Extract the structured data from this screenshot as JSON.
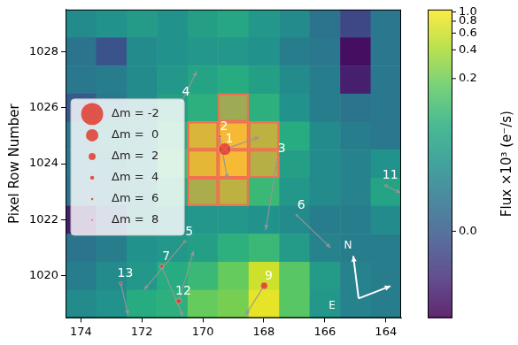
{
  "chart_data": {
    "type": "heatmap",
    "y_label": "Pixel Row Number",
    "colorbar_label": "Flux ×10³ (e⁻/s)",
    "xlim": [
      174.5,
      163.5
    ],
    "ylim": [
      1018.5,
      1029.5
    ],
    "xticks": [
      174,
      172,
      170,
      168,
      166,
      164
    ],
    "yticks": [
      1020,
      1022,
      1024,
      1026,
      1028
    ],
    "grid": false,
    "columns": [
      174,
      173,
      172,
      171,
      170,
      169,
      168,
      167,
      166,
      165,
      164
    ],
    "rows": [
      1029,
      1028,
      1027,
      1026,
      1025,
      1024,
      1023,
      1022,
      1021,
      1020,
      1019
    ],
    "flux": [
      [
        0.02,
        0.025,
        0.035,
        0.025,
        0.04,
        0.05,
        0.03,
        0.02,
        0.008,
        -0.005,
        0.01
      ],
      [
        0.008,
        -0.002,
        0.02,
        0.025,
        0.03,
        0.03,
        0.025,
        0.012,
        0.01,
        -0.03,
        0.01
      ],
      [
        0.01,
        0.012,
        0.02,
        0.03,
        0.045,
        0.06,
        0.04,
        0.02,
        0.012,
        -0.02,
        0.01
      ],
      [
        0.0,
        0.01,
        0.02,
        0.04,
        0.07,
        0.2,
        0.07,
        0.025,
        0.012,
        0.008,
        0.01
      ],
      [
        0.01,
        0.02,
        0.025,
        0.07,
        0.6,
        1.0,
        0.35,
        0.06,
        0.02,
        0.012,
        0.01
      ],
      [
        0.01,
        0.015,
        0.025,
        0.1,
        0.75,
        1.05,
        0.3,
        0.04,
        0.02,
        0.015,
        0.025
      ],
      [
        0.008,
        0.012,
        0.02,
        0.06,
        0.25,
        0.35,
        0.09,
        0.03,
        0.02,
        0.015,
        0.045
      ],
      [
        -0.02,
        0.0,
        0.02,
        0.025,
        0.03,
        0.03,
        0.025,
        0.02,
        0.012,
        0.012,
        0.02
      ],
      [
        0.008,
        0.012,
        0.025,
        0.03,
        0.04,
        0.07,
        0.09,
        0.035,
        0.015,
        0.012,
        0.012
      ],
      [
        0.012,
        0.02,
        0.03,
        0.06,
        0.09,
        0.18,
        0.6,
        0.15,
        0.035,
        0.015,
        0.012
      ],
      [
        0.02,
        0.025,
        0.06,
        0.07,
        0.18,
        0.22,
        0.8,
        0.15,
        0.03,
        0.015,
        0.012
      ]
    ],
    "colorbar_lim": [
      -0.04,
      1.06
    ],
    "colorbar_ticks": [
      {
        "value": 0,
        "label": "0.0"
      },
      0.2,
      0.4,
      0.6,
      0.8,
      {
        "value": 1,
        "label": "1.0"
      }
    ],
    "aperture": {
      "color": "#f07050",
      "pixels": [
        [
          169,
          1026
        ],
        [
          170,
          1025
        ],
        [
          169,
          1025
        ],
        [
          168,
          1025
        ],
        [
          170,
          1024
        ],
        [
          169,
          1024
        ],
        [
          168,
          1024
        ],
        [
          170,
          1023
        ],
        [
          169,
          1023
        ]
      ]
    },
    "stars": {
      "color": "#e0392f",
      "items": [
        {
          "label": "1",
          "x": 169.28,
          "y": 1024.52,
          "dm": 0,
          "arrow_to": [
            168.15,
            1024.95
          ]
        },
        {
          "label": "2",
          "x": 169.45,
          "y": 1024.98,
          "dm": 5,
          "arrow_to": [
            169.19,
            1023.45
          ]
        },
        {
          "label": "3",
          "x": 167.56,
          "y": 1024.17,
          "dm": 6,
          "arrow_to": [
            167.94,
            1021.64
          ]
        },
        {
          "label": "4",
          "x": 170.7,
          "y": 1026.2,
          "dm": 7,
          "arrow_to": [
            170.2,
            1027.3
          ]
        },
        {
          "label": "5",
          "x": 170.59,
          "y": 1021.23,
          "dm": 6,
          "arrow_to": [
            171.93,
            1019.5
          ]
        },
        {
          "label": "6",
          "x": 166.92,
          "y": 1022.16,
          "dm": 7,
          "arrow_to": [
            165.81,
            1021.0
          ]
        },
        {
          "label": "7",
          "x": 171.35,
          "y": 1020.34,
          "dm": 4,
          "arrow_to": [
            170.65,
            1018.55
          ]
        },
        {
          "label": "9",
          "x": 167.99,
          "y": 1019.65,
          "dm": 2,
          "arrow_to": [
            168.6,
            1018.6
          ]
        },
        {
          "label": "11",
          "x": 164.0,
          "y": 1023.22,
          "dm": 6,
          "arrow_to": [
            163.5,
            1022.95
          ]
        },
        {
          "label": "12",
          "x": 170.79,
          "y": 1019.1,
          "dm": 3,
          "arrow_to": [
            170.3,
            1020.9
          ]
        },
        {
          "label": "13",
          "x": 172.69,
          "y": 1019.73,
          "dm": 5,
          "arrow_to": [
            172.45,
            1018.6
          ]
        }
      ]
    },
    "target": {
      "x": 169.28,
      "y": 1024.52,
      "marker": "x",
      "color": "#ffffff"
    },
    "size_legend": [
      {
        "label": "Δm = -2",
        "dm": -2
      },
      {
        "label": "Δm =  0",
        "dm": 0
      },
      {
        "label": "Δm =  2",
        "dm": 2
      },
      {
        "label": "Δm =  4",
        "dm": 4
      },
      {
        "label": "Δm =  6",
        "dm": 6
      },
      {
        "label": "Δm =  8",
        "dm": 8
      }
    ],
    "compass": {
      "north": "N",
      "east": "E"
    }
  }
}
